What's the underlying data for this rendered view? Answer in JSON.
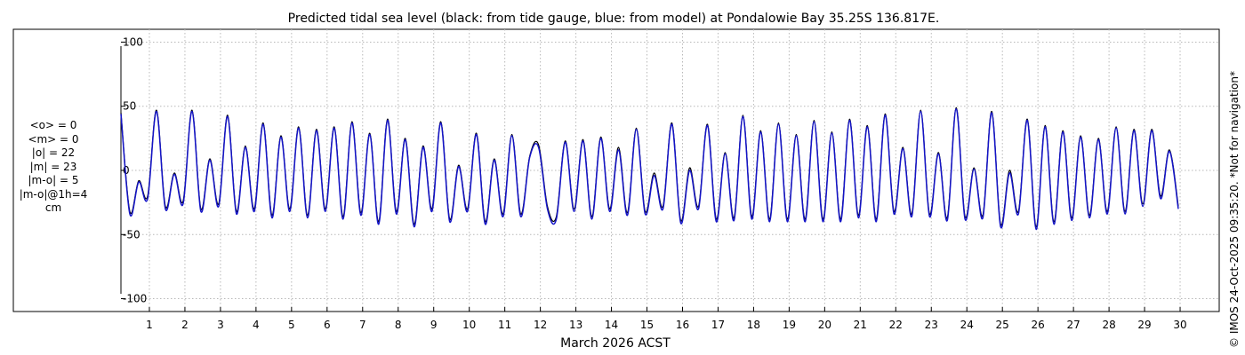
{
  "chart_data": {
    "type": "line",
    "title": "Predicted tidal sea level (black: from tide gauge, blue: from model) at Pondalowie Bay 35.25S 136.817E.",
    "xlabel": "March 2026 ACST",
    "ylabel": "",
    "x_ticks": [
      "1",
      "2",
      "3",
      "4",
      "5",
      "6",
      "7",
      "8",
      "9",
      "10",
      "11",
      "12",
      "13",
      "14",
      "15",
      "16",
      "17",
      "18",
      "19",
      "20",
      "21",
      "22",
      "23",
      "24",
      "25",
      "26",
      "27",
      "28",
      "29",
      "30"
    ],
    "y_ticks": [
      "100",
      "50",
      "0",
      "-50",
      "-100"
    ],
    "xlim": [
      0.2,
      31.1
    ],
    "ylim": [
      -110,
      110
    ],
    "grid": true,
    "x_start_day": 0.2,
    "x_step_days": 0.25,
    "series": [
      {
        "name": "from tide gauge",
        "color": "#000000",
        "values": [
          45,
          -32,
          -8,
          -20,
          47,
          -28,
          -2,
          -24,
          47,
          -30,
          9,
          -26,
          43,
          -32,
          19,
          -30,
          37,
          -35,
          27,
          -30,
          34,
          -35,
          32,
          -30,
          34,
          -36,
          38,
          -33,
          29,
          -40,
          40,
          -32,
          25,
          -42,
          19,
          -30,
          38,
          -38,
          4,
          -30,
          29,
          -40,
          9,
          -34,
          28,
          -34,
          11,
          20,
          -28,
          -36,
          23,
          -30,
          24,
          -36,
          26,
          -30,
          18,
          -33,
          33,
          -32,
          -2,
          -28,
          37,
          -39,
          2,
          -28,
          36,
          -38,
          14,
          -37,
          43,
          -36,
          31,
          -38,
          37,
          -38,
          28,
          -38,
          39,
          -38,
          30,
          -38,
          40,
          -35,
          35,
          -38,
          44,
          -32,
          18,
          -34,
          47,
          -34,
          14,
          -37,
          49,
          -36,
          2,
          -35,
          46,
          -42,
          0,
          -32,
          40,
          -44,
          35,
          -40,
          31,
          -37,
          27,
          -35,
          25,
          -32,
          34,
          -32,
          32,
          -26,
          32,
          -20,
          16,
          -28
        ]
      },
      {
        "name": "from model",
        "color": "#1414c8",
        "values": [
          44,
          -34,
          -9,
          -22,
          46,
          -30,
          -3,
          -26,
          46,
          -32,
          8,
          -28,
          42,
          -34,
          18,
          -32,
          36,
          -37,
          26,
          -32,
          33,
          -37,
          31,
          -32,
          33,
          -38,
          37,
          -35,
          28,
          -42,
          39,
          -34,
          24,
          -44,
          18,
          -32,
          37,
          -40,
          3,
          -32,
          28,
          -42,
          8,
          -36,
          27,
          -36,
          10,
          18,
          -30,
          -38,
          22,
          -32,
          23,
          -38,
          25,
          -32,
          16,
          -35,
          32,
          -34,
          -4,
          -30,
          36,
          -41,
          0,
          -30,
          35,
          -40,
          13,
          -39,
          42,
          -38,
          30,
          -40,
          36,
          -40,
          27,
          -40,
          38,
          -40,
          29,
          -40,
          39,
          -37,
          34,
          -40,
          43,
          -34,
          17,
          -36,
          46,
          -36,
          13,
          -39,
          48,
          -38,
          1,
          -37,
          45,
          -44,
          -2,
          -34,
          39,
          -46,
          34,
          -42,
          30,
          -39,
          26,
          -37,
          24,
          -34,
          33,
          -34,
          31,
          -28,
          31,
          -22,
          15,
          -30
        ]
      }
    ]
  },
  "stats": [
    "<o> = 0",
    "<m> = 0",
    "|o| = 22",
    "|m| = 23",
    "|m-o| = 5",
    "|m-o|@1h=4",
    "cm"
  ],
  "credit": "© IMOS 24-Oct-2025 09:35:20. *Not for navigation*"
}
